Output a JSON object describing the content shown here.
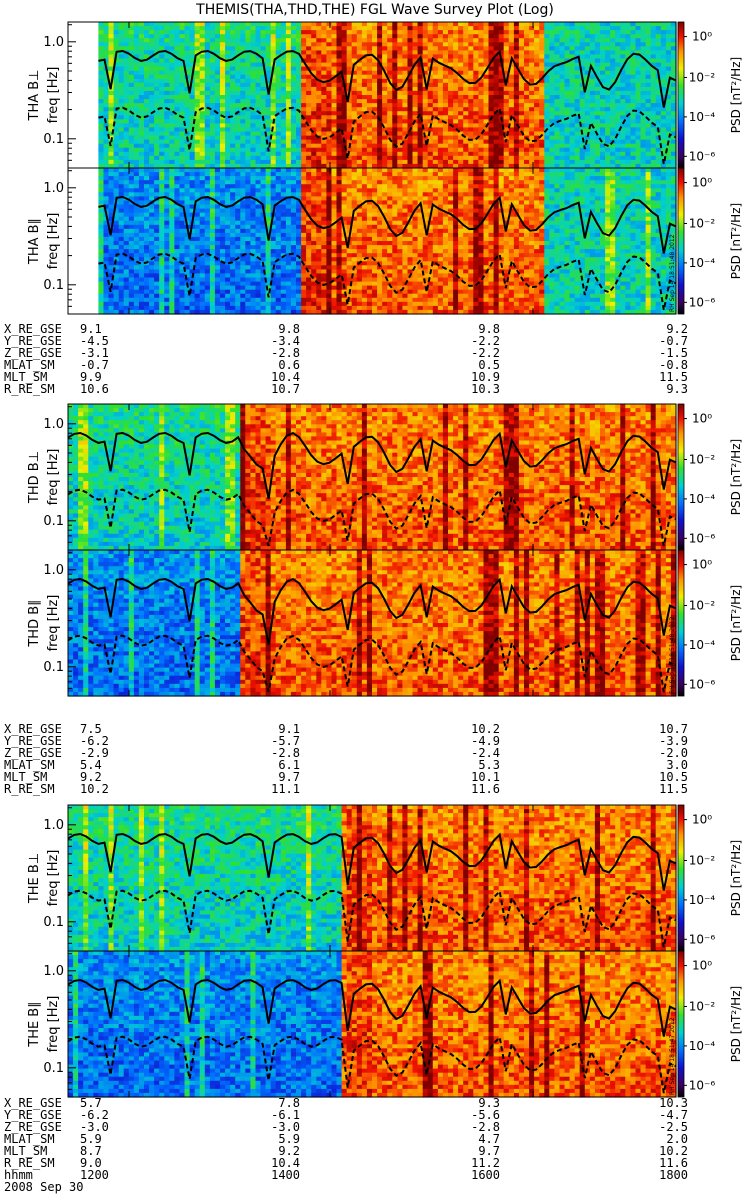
{
  "title": "THEMIS(THA,THD,THE) FGL Wave Survey Plot (Log)",
  "date": "2008 Sep 30",
  "time_label": "hhmm",
  "xticks": [
    "1200",
    "1400",
    "1600",
    "1800"
  ],
  "probes": [
    {
      "panels": [
        {
          "label": "THA B⊥",
          "ylabel": "freq [Hz]",
          "colorbar_label": "PSD [nT²/Hz]",
          "stamp": "",
          "yticks": [
            "1.0",
            "0.1"
          ],
          "gap_end": 0.05,
          "onset": 0.38,
          "onset2": 0.78
        },
        {
          "label": "THA B∥",
          "ylabel": "freq [Hz]",
          "colorbar_label": "PSD [nT²/Hz]",
          "stamp": "RH Sep 14 18:51:48 2012",
          "yticks": [
            "1.0",
            "0.1"
          ],
          "gap_end": 0.05,
          "onset": 0.38,
          "onset2": 0.78
        }
      ],
      "ephemeris": [
        {
          "name": "X_RE_GSE",
          "values": [
            "9.1",
            "9.8",
            "9.8",
            "9.2"
          ]
        },
        {
          "name": "Y_RE_GSE",
          "values": [
            "-4.5",
            "-3.4",
            "-2.2",
            "-0.7"
          ]
        },
        {
          "name": "Z_RE_GSE",
          "values": [
            "-3.1",
            "-2.8",
            "-2.2",
            "-1.5"
          ]
        },
        {
          "name": "MLAT_SM",
          "values": [
            "-0.7",
            "0.6",
            "0.5",
            "-0.8"
          ]
        },
        {
          "name": "MLT_SM",
          "values": [
            "9.9",
            "10.4",
            "10.9",
            "11.5"
          ]
        },
        {
          "name": "R_RE_SM",
          "values": [
            "10.6",
            "10.7",
            "10.3",
            "9.3"
          ]
        }
      ]
    },
    {
      "panels": [
        {
          "label": "THD B⊥",
          "ylabel": "freq [Hz]",
          "colorbar_label": "PSD [nT²/Hz]",
          "stamp": "",
          "yticks": [
            "1.0",
            "0.1"
          ],
          "gap_end": 0,
          "onset": 0.28,
          "onset2": 1.1
        },
        {
          "label": "THD B∥",
          "ylabel": "freq [Hz]",
          "colorbar_label": "PSD [nT²/Hz]",
          "stamp": "RH Sep 14 18:51:48 2012",
          "yticks": [
            "1.0",
            "0.1"
          ],
          "gap_end": 0,
          "onset": 0.28,
          "onset2": 1.1
        }
      ],
      "ephemeris": [
        {
          "name": "X_RE_GSE",
          "values": [
            "7.5",
            "9.1",
            "10.2",
            "10.7"
          ]
        },
        {
          "name": "Y_RE_GSE",
          "values": [
            "-6.2",
            "-5.7",
            "-4.9",
            "-3.9"
          ]
        },
        {
          "name": "Z_RE_GSE",
          "values": [
            "-2.9",
            "-2.8",
            "-2.4",
            "-2.0"
          ]
        },
        {
          "name": "MLAT_SM",
          "values": [
            "5.4",
            "6.1",
            "5.3",
            "3.0"
          ]
        },
        {
          "name": "MLT_SM",
          "values": [
            "9.2",
            "9.7",
            "10.1",
            "10.5"
          ]
        },
        {
          "name": "R_RE_SM",
          "values": [
            "10.2",
            "11.1",
            "11.6",
            "11.5"
          ]
        }
      ]
    },
    {
      "panels": [
        {
          "label": "THE B⊥",
          "ylabel": "freq [Hz]",
          "colorbar_label": "PSD [nT²/Hz]",
          "stamp": "",
          "yticks": [
            "1.0",
            "0.1"
          ],
          "gap_end": 0,
          "onset": 0.45,
          "onset2": 1.1
        },
        {
          "label": "THE B∥",
          "ylabel": "freq [Hz]",
          "colorbar_label": "PSD [nT²/Hz]",
          "stamp": "RH Sep 14 18:51:47 2012",
          "yticks": [
            "1.0",
            "0.1"
          ],
          "gap_end": 0,
          "onset": 0.45,
          "onset2": 1.1
        }
      ],
      "ephemeris": [
        {
          "name": "X_RE_GSE",
          "values": [
            "5.7",
            "7.8",
            "9.3",
            "10.3"
          ]
        },
        {
          "name": "Y_RE_GSE",
          "values": [
            "-6.2",
            "-6.1",
            "-5.6",
            "-4.7"
          ]
        },
        {
          "name": "Z_RE_GSE",
          "values": [
            "-3.0",
            "-3.0",
            "-2.8",
            "-2.5"
          ]
        },
        {
          "name": "MLAT_SM",
          "values": [
            "5.9",
            "5.9",
            "4.7",
            "2.0"
          ]
        },
        {
          "name": "MLT_SM",
          "values": [
            "8.7",
            "9.2",
            "9.7",
            "10.2"
          ]
        },
        {
          "name": "R_RE_SM",
          "values": [
            "9.0",
            "10.4",
            "11.2",
            "11.6"
          ]
        }
      ]
    }
  ],
  "colorbar_ticks": [
    "10⁰",
    "10⁻²",
    "10⁻⁴",
    "10⁻⁶"
  ],
  "chart_data": {
    "type": "heatmap",
    "title": "THEMIS(THA,THD,THE) FGL Wave Survey Plot (Log)",
    "xlabel": "hhmm",
    "ylabel": "freq [Hz]",
    "x_ticks": [
      "1200",
      "1400",
      "1600",
      "1800"
    ],
    "y_scale": "log",
    "ylim": [
      0.05,
      1.6
    ],
    "z_label": "PSD [nT²/Hz]",
    "z_scale": "log",
    "zlim": [
      1e-07,
      10
    ],
    "colorbar_ticks": [
      1,
      0.01,
      0.0001,
      1e-06
    ],
    "series": [
      {
        "name": "THA B⊥"
      },
      {
        "name": "THA B∥"
      },
      {
        "name": "THD B⊥"
      },
      {
        "name": "THD B∥"
      },
      {
        "name": "THE B⊥"
      },
      {
        "name": "THE B∥"
      }
    ]
  }
}
